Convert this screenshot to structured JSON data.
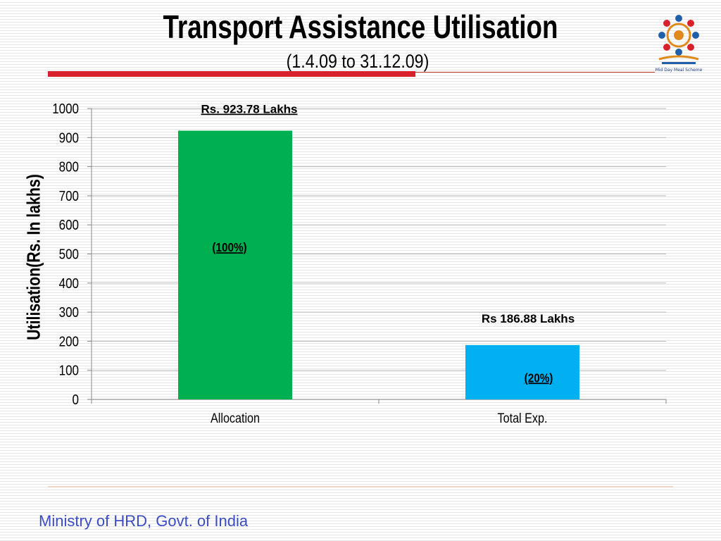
{
  "header": {
    "title": "Transport Assistance Utilisation",
    "subtitle": "(1.4.09 to 31.12.09)",
    "logo_caption": "Mid Day Meal Scheme"
  },
  "footer": {
    "text": "Ministry of HRD, Govt. of India"
  },
  "colors": {
    "allocation_bar": "#00b050",
    "expenditure_bar": "#00b0f0",
    "title_rule": "#d9212b",
    "footer_text": "#3b4cc0"
  },
  "chart_data": {
    "type": "bar",
    "ylabel": "Utilisation(Rs. In lakhs)",
    "xlabel": "",
    "ylim": [
      0,
      1000
    ],
    "yticks": [
      "0",
      "100",
      "200",
      "300",
      "400",
      "500",
      "600",
      "700",
      "800",
      "900",
      "1000"
    ],
    "grid": true,
    "categories": [
      "Allocation",
      "Total Exp."
    ],
    "values": [
      923.78,
      186.88
    ],
    "value_labels": [
      "Rs. 923.78 Lakhs",
      "Rs 186.88 Lakhs"
    ],
    "percent_labels": [
      "(100%)",
      "(20%)"
    ]
  }
}
